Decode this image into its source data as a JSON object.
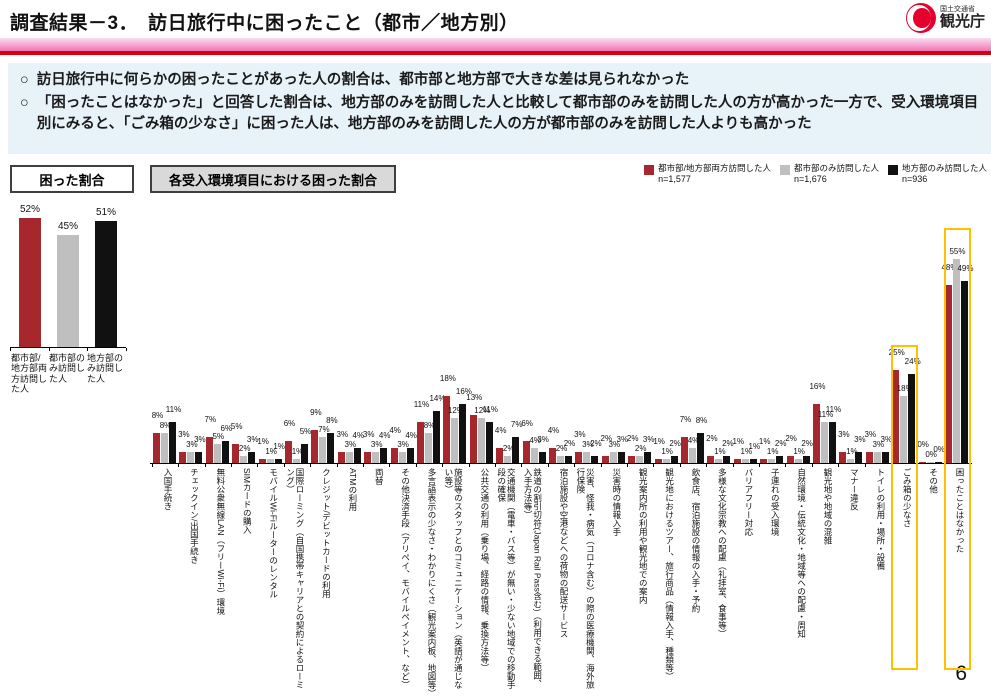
{
  "header": {
    "title": "調査結果－3．　訪日旅行中に困ったこと（都市／地方別）",
    "agency_small": "国土交通省",
    "agency_large": "観光庁"
  },
  "bullets": [
    "訪日旅行中に何らかの困ったことがあった人の割合は、都市部と地方部で大きな差は見られなかった",
    "「困ったことはなかった」と回答した割合は、地方部のみを訪問した人と比較して都市部のみを訪問した人の方が高かった一方で、受入環境項目別にみると、「ごみ箱の少なさ」に困った人は、地方部のみを訪問した人の方が都市部のみを訪問した人よりも高かった"
  ],
  "bullet_mark": "○",
  "section_labels": {
    "left_box": "困った割合",
    "right_box": "各受入環境項目における困った割合"
  },
  "legend": [
    {
      "label": "都市部/地方部両方訪問した人",
      "n": "n=1,577",
      "color": "#A6282D"
    },
    {
      "label": "都市部のみ訪問した人",
      "n": "n=1,676",
      "color": "#BFBFBF"
    },
    {
      "label": "地方部のみ訪問した人",
      "n": "n=936",
      "color": "#111111"
    }
  ],
  "colors": {
    "both": "#A6282D",
    "urban_only": "#BFBFBF",
    "rural_only": "#111111",
    "highlight": "#FFC000",
    "header_pink": "#ef74b4",
    "header_red": "#D7000F",
    "info_bg": "#E7F2F9"
  },
  "page_number": "6",
  "chart_data": [
    {
      "type": "bar",
      "title": "困った割合",
      "unit": "%",
      "categories": [
        "都市部/地方部両方訪問した人",
        "都市部のみ訪問した人",
        "地方部のみ訪問した人"
      ],
      "values": [
        52,
        45,
        51
      ],
      "value_labels": [
        "52%",
        "45%",
        "51%"
      ],
      "ylim": [
        0,
        60
      ],
      "grid": false
    },
    {
      "type": "bar",
      "title": "各受入環境項目における困った割合",
      "unit": "%",
      "ylim": [
        0,
        60
      ],
      "grid": false,
      "legend_position": "top-right",
      "categories": [
        "入国手続き",
        "チェックイン/出国手続き",
        "無料公衆無線LAN（フリーWi-Fi）環境",
        "SIMカードの購入",
        "モバイルWi-Fiルーターのレンタル",
        "国際ローミング（自国携帯キャリアとの契約によるローミング）",
        "クレジット/デビットカードの利用",
        "ATMの利用",
        "両替",
        "その他決済手段（アリペイ、モバイルペイメント、など）",
        "多言語表示の少なさ・わかりにくさ（観光案内板、地図等）",
        "施設等のスタッフとのコミュニケーション（英語が通じない等）",
        "公共交通の利用（乗り場、経路の情報、乗換方法等）",
        "交通機関（電車・バス等）が無い・少ない地域での移動手段の確保",
        "鉄道の割引切符(Japan Rail Pass含む)（利用できる範囲、入手方法等）",
        "宿泊施設や空港などへの荷物の配送サービス",
        "災害、怪我・病気（コロナ含む）の際の医療機関、海外旅行保険",
        "災害時の情報入手",
        "観光案内所の利用や観光地での案内",
        "観光地におけるツアー、旅行商品（情報入手、種類等）",
        "飲食店、宿泊施設の情報の入手・予約",
        "多様な文化宗教への配慮（礼拝室、食事等）",
        "バリアフリー対応",
        "子連れの受入環境",
        "自然環境・伝統文化・地域等への配慮・周知",
        "観光地や地域の混雑",
        "マナー違反",
        "トイレの利用・場所・設備",
        "ごみ箱の少なさ",
        "その他",
        "困ったことはなかった"
      ],
      "series": [
        {
          "name": "都市部/地方部両方訪問した人",
          "n": "n=1,577",
          "values": [
            8,
            3,
            7,
            5,
            1,
            6,
            9,
            3,
            3,
            4,
            11,
            18,
            13,
            4,
            6,
            4,
            3,
            2,
            2,
            1,
            7,
            2,
            1,
            1,
            2,
            16,
            3,
            3,
            25,
            0,
            48
          ]
        },
        {
          "name": "都市部のみ訪問した人",
          "n": "n=1,676",
          "values": [
            8,
            3,
            5,
            2,
            1,
            1,
            7,
            3,
            3,
            3,
            8,
            12,
            12,
            2,
            4,
            2,
            3,
            3,
            2,
            1,
            4,
            1,
            1,
            1,
            1,
            11,
            1,
            3,
            18,
            0,
            55
          ]
        },
        {
          "name": "地方部のみ訪問した人",
          "n": "n=936",
          "values": [
            11,
            3,
            6,
            3,
            1,
            5,
            8,
            4,
            4,
            4,
            14,
            16,
            11,
            7,
            3,
            2,
            2,
            3,
            3,
            2,
            8,
            2,
            1,
            2,
            2,
            11,
            3,
            3,
            24,
            0,
            49
          ]
        }
      ],
      "highlighted_categories": [
        "ごみ箱の少なさ",
        "困ったことはなかった"
      ]
    }
  ]
}
